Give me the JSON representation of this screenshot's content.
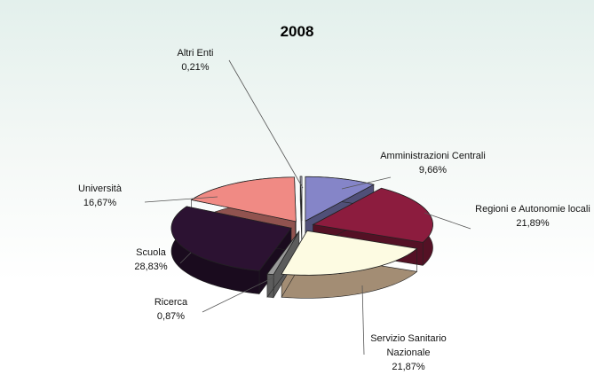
{
  "chart_data": {
    "type": "pie",
    "title": "2008",
    "categories": [
      "Amministrazioni Centrali",
      "Regioni e Autonomie locali",
      "Servizio Sanitario Nazionale",
      "Ricerca",
      "Scuola",
      "Università",
      "Altri Enti"
    ],
    "values": [
      9.66,
      21.89,
      21.87,
      0.87,
      28.83,
      16.67,
      0.21
    ],
    "value_labels": [
      "9,66%",
      "21,89%",
      "21,87%",
      "0,87%",
      "28,83%",
      "16,67%",
      "0,21%"
    ],
    "colors": [
      "#8585c8",
      "#8c1c3e",
      "#fdfbe2",
      "#9a9a9a",
      "#2c1232",
      "#f08a84",
      "#e6e6fa"
    ]
  }
}
